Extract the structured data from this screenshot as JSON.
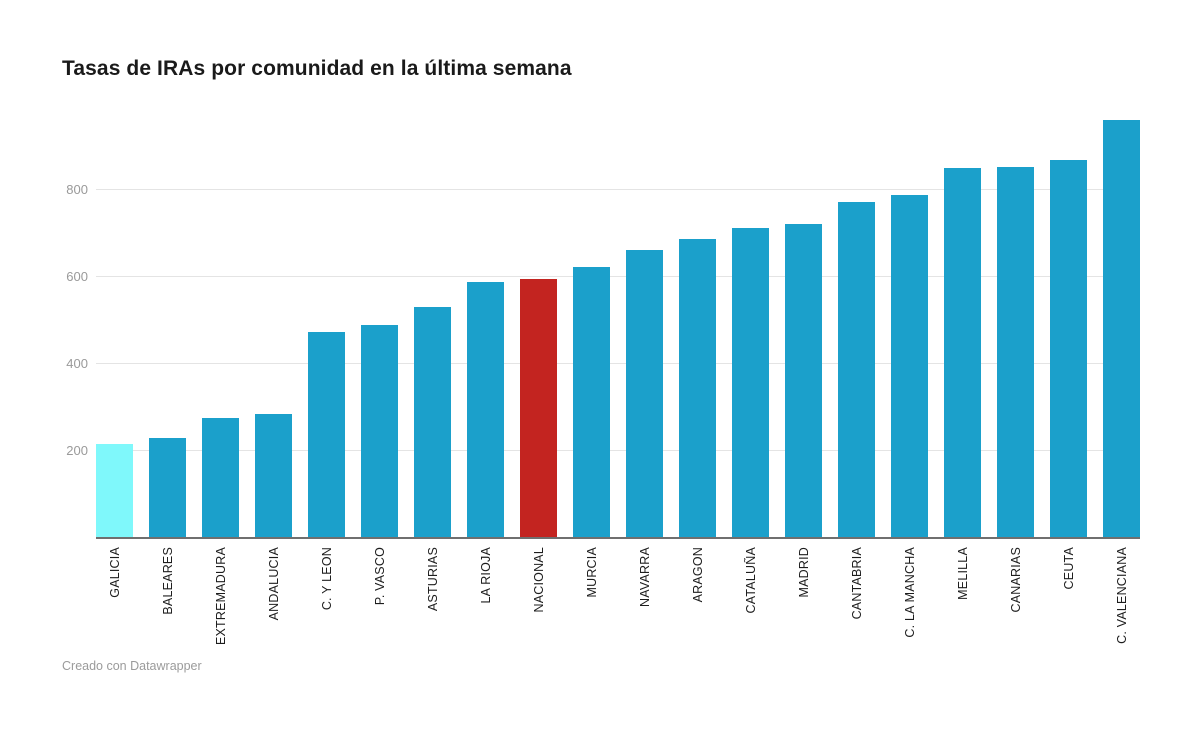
{
  "header": {
    "title": "Tasas de IRAs por comunidad en la última semana"
  },
  "footer": {
    "credit": "Creado con Datawrapper"
  },
  "colors": {
    "bar_default": "#1ba0cb",
    "bar_highlight_galicia": "#7ff8fb",
    "bar_highlight_nacional": "#c32420",
    "grid": "#e4e4e4",
    "axis": "#6f6f6f",
    "tick_label": "#9a9a9a",
    "category_label": "#1d1d1d",
    "background": "#ffffff"
  },
  "chart_data": {
    "type": "bar",
    "title": "Tasas de IRAs por comunidad en la última semana",
    "categories": [
      "GALICIA",
      "BALEARES",
      "EXTREMADURA",
      "ANDALUCIA",
      "C. Y LEON",
      "P. VASCO",
      "ASTURIAS",
      "LA RIOJA",
      "NACIONAL",
      "MURCIA",
      "NAVARRA",
      "ARAGON",
      "CATALUÑA",
      "MADRID",
      "CANTABRIA",
      "C. LA MANCHA",
      "MELILLA",
      "CANARIAS",
      "CEUTA",
      "C. VALENCIANA"
    ],
    "values": [
      215,
      230,
      276,
      284,
      473,
      489,
      531,
      588,
      596,
      624,
      661,
      687,
      713,
      723,
      772,
      789,
      851,
      853,
      868,
      960
    ],
    "bar_colors": [
      "#7ff8fb",
      "#1ba0cb",
      "#1ba0cb",
      "#1ba0cb",
      "#1ba0cb",
      "#1ba0cb",
      "#1ba0cb",
      "#1ba0cb",
      "#c32420",
      "#1ba0cb",
      "#1ba0cb",
      "#1ba0cb",
      "#1ba0cb",
      "#1ba0cb",
      "#1ba0cb",
      "#1ba0cb",
      "#1ba0cb",
      "#1ba0cb",
      "#1ba0cb",
      "#1ba0cb"
    ],
    "highlights": [
      {
        "category": "GALICIA",
        "color": "#7ff8fb"
      },
      {
        "category": "NACIONAL",
        "color": "#c32420"
      }
    ],
    "xlabel": "",
    "ylabel": "",
    "yticks": [
      200,
      400,
      600,
      800
    ],
    "ylim": [
      0,
      1000
    ],
    "grid": "horizontal",
    "legend": "none"
  }
}
